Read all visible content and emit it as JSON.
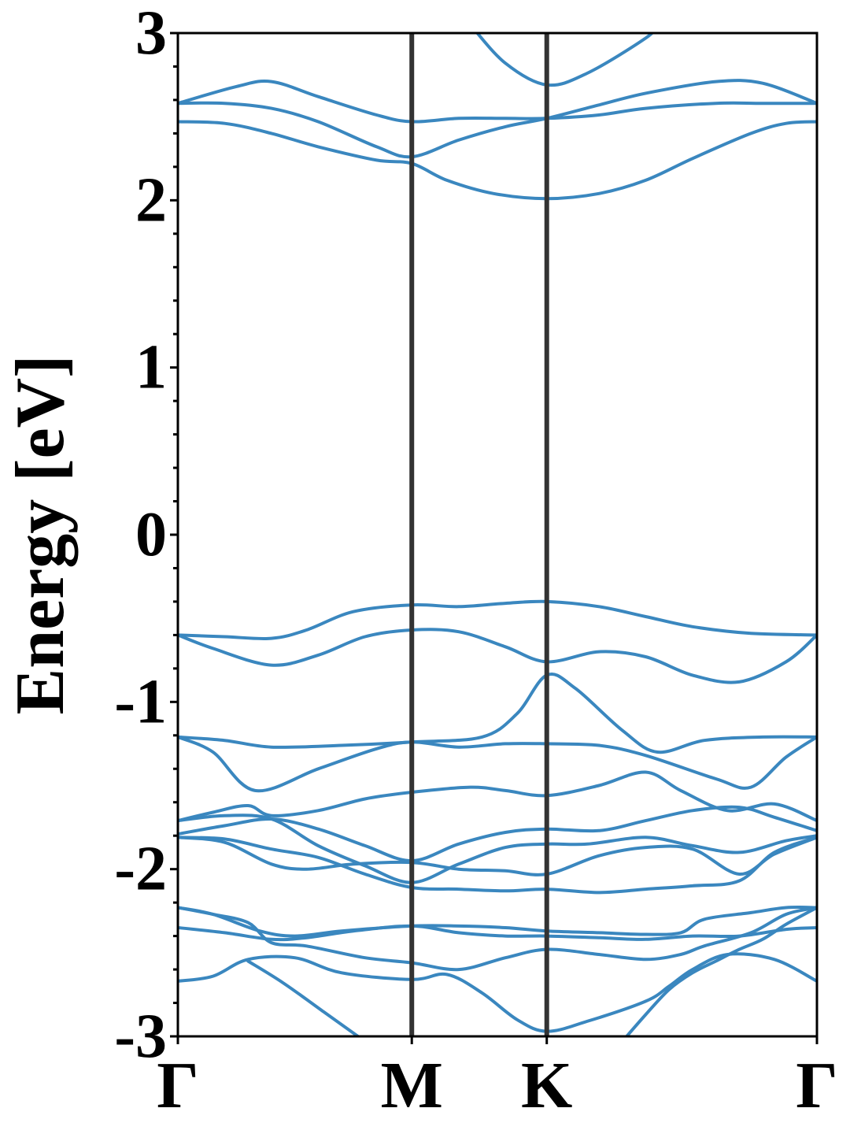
{
  "chart_data": {
    "type": "line",
    "title": "",
    "xlabel": "",
    "ylabel": "Energy [eV]",
    "ylim": [
      -3,
      3
    ],
    "xlim": [
      0,
      2.732
    ],
    "y_ticks": [
      -3,
      -2,
      -1,
      0,
      1,
      2,
      3
    ],
    "y_tick_labels": [
      "-3",
      "-2",
      "-1",
      "0",
      "1",
      "2",
      "3"
    ],
    "x_ticks": [
      0,
      1.0,
      1.577,
      2.732
    ],
    "x_tick_labels": [
      "Γ",
      "M",
      "K",
      "Γ"
    ],
    "high_symmetry_lines": [
      1.0,
      1.577
    ],
    "grid": false,
    "series_color": "#3a87bf",
    "divider_color": "#333333",
    "series": [
      {
        "values": [
          [
            0,
            2.58
          ],
          [
            0.25,
            2.68
          ],
          [
            0.4,
            2.71
          ],
          [
            0.6,
            2.62
          ],
          [
            0.85,
            2.51
          ],
          [
            1.0,
            2.47
          ],
          [
            1.2,
            2.49
          ],
          [
            1.4,
            2.49
          ],
          [
            1.577,
            2.49
          ],
          [
            1.8,
            2.51
          ],
          [
            2.0,
            2.55
          ],
          [
            2.3,
            2.58
          ],
          [
            2.5,
            2.58
          ],
          [
            2.732,
            2.58
          ]
        ]
      },
      {
        "values": [
          [
            0,
            2.58
          ],
          [
            0.2,
            2.58
          ],
          [
            0.4,
            2.55
          ],
          [
            0.6,
            2.47
          ],
          [
            0.85,
            2.32
          ],
          [
            1.0,
            2.26
          ],
          [
            1.2,
            2.36
          ],
          [
            1.4,
            2.44
          ],
          [
            1.577,
            2.49
          ],
          [
            1.8,
            2.57
          ],
          [
            2.0,
            2.64
          ],
          [
            2.3,
            2.71
          ],
          [
            2.5,
            2.7
          ],
          [
            2.732,
            2.58
          ]
        ]
      },
      {
        "values": [
          [
            0,
            2.47
          ],
          [
            0.2,
            2.46
          ],
          [
            0.4,
            2.4
          ],
          [
            0.6,
            2.32
          ],
          [
            0.85,
            2.24
          ],
          [
            1.0,
            2.22
          ],
          [
            1.15,
            2.12
          ],
          [
            1.35,
            2.04
          ],
          [
            1.577,
            2.01
          ],
          [
            1.8,
            2.04
          ],
          [
            2.0,
            2.12
          ],
          [
            2.2,
            2.25
          ],
          [
            2.45,
            2.4
          ],
          [
            2.6,
            2.46
          ],
          [
            2.732,
            2.47
          ]
        ]
      },
      {
        "values": [
          [
            1.25,
            3.05
          ],
          [
            1.4,
            2.82
          ],
          [
            1.577,
            2.69
          ],
          [
            1.75,
            2.76
          ],
          [
            2.0,
            2.97
          ],
          [
            2.05,
            3.05
          ]
        ]
      },
      {
        "values": [
          [
            0,
            -0.6
          ],
          [
            0.2,
            -0.61
          ],
          [
            0.4,
            -0.62
          ],
          [
            0.55,
            -0.57
          ],
          [
            0.75,
            -0.46
          ],
          [
            1.0,
            -0.42
          ],
          [
            1.2,
            -0.43
          ],
          [
            1.4,
            -0.41
          ],
          [
            1.577,
            -0.4
          ],
          [
            1.8,
            -0.43
          ],
          [
            2.0,
            -0.49
          ],
          [
            2.2,
            -0.55
          ],
          [
            2.45,
            -0.59
          ],
          [
            2.732,
            -0.6
          ]
        ]
      },
      {
        "values": [
          [
            0,
            -0.6
          ],
          [
            0.15,
            -0.68
          ],
          [
            0.4,
            -0.78
          ],
          [
            0.6,
            -0.72
          ],
          [
            0.8,
            -0.61
          ],
          [
            1.0,
            -0.57
          ],
          [
            1.2,
            -0.58
          ],
          [
            1.4,
            -0.67
          ],
          [
            1.577,
            -0.76
          ],
          [
            1.8,
            -0.7
          ],
          [
            2.0,
            -0.73
          ],
          [
            2.2,
            -0.84
          ],
          [
            2.4,
            -0.88
          ],
          [
            2.6,
            -0.76
          ],
          [
            2.732,
            -0.6
          ]
        ]
      },
      {
        "values": [
          [
            0,
            -1.21
          ],
          [
            0.2,
            -1.23
          ],
          [
            0.4,
            -1.27
          ],
          [
            0.7,
            -1.26
          ],
          [
            1.0,
            -1.24
          ],
          [
            1.3,
            -1.21
          ],
          [
            1.45,
            -1.07
          ],
          [
            1.577,
            -0.84
          ],
          [
            1.7,
            -0.92
          ],
          [
            1.9,
            -1.17
          ],
          [
            2.05,
            -1.3
          ],
          [
            2.25,
            -1.23
          ],
          [
            2.5,
            -1.21
          ],
          [
            2.732,
            -1.21
          ]
        ]
      },
      {
        "values": [
          [
            0,
            -1.21
          ],
          [
            0.15,
            -1.3
          ],
          [
            0.33,
            -1.53
          ],
          [
            0.6,
            -1.4
          ],
          [
            0.85,
            -1.28
          ],
          [
            1.0,
            -1.24
          ],
          [
            1.2,
            -1.27
          ],
          [
            1.4,
            -1.25
          ],
          [
            1.577,
            -1.25
          ],
          [
            1.8,
            -1.26
          ],
          [
            2.0,
            -1.32
          ],
          [
            2.3,
            -1.46
          ],
          [
            2.45,
            -1.51
          ],
          [
            2.6,
            -1.33
          ],
          [
            2.732,
            -1.21
          ]
        ]
      },
      {
        "values": [
          [
            0,
            -1.71
          ],
          [
            0.15,
            -1.66
          ],
          [
            0.3,
            -1.62
          ],
          [
            0.4,
            -1.68
          ],
          [
            0.6,
            -1.65
          ],
          [
            0.8,
            -1.58
          ],
          [
            1.0,
            -1.54
          ],
          [
            1.25,
            -1.51
          ],
          [
            1.4,
            -1.53
          ],
          [
            1.577,
            -1.56
          ],
          [
            1.8,
            -1.5
          ],
          [
            2.0,
            -1.42
          ],
          [
            2.15,
            -1.53
          ],
          [
            2.35,
            -1.65
          ],
          [
            2.55,
            -1.61
          ],
          [
            2.732,
            -1.71
          ]
        ]
      },
      {
        "values": [
          [
            0,
            -1.79
          ],
          [
            0.2,
            -1.74
          ],
          [
            0.4,
            -1.7
          ],
          [
            0.6,
            -1.76
          ],
          [
            0.8,
            -1.86
          ],
          [
            1.0,
            -1.95
          ],
          [
            1.2,
            -1.85
          ],
          [
            1.4,
            -1.78
          ],
          [
            1.577,
            -1.76
          ],
          [
            1.8,
            -1.77
          ],
          [
            2.0,
            -1.71
          ],
          [
            2.2,
            -1.65
          ],
          [
            2.4,
            -1.63
          ],
          [
            2.55,
            -1.69
          ],
          [
            2.732,
            -1.77
          ]
        ]
      },
      {
        "values": [
          [
            0,
            -1.71
          ],
          [
            0.2,
            -1.68
          ],
          [
            0.4,
            -1.7
          ],
          [
            0.6,
            -1.86
          ],
          [
            0.8,
            -1.98
          ],
          [
            1.0,
            -2.08
          ],
          [
            1.2,
            -1.97
          ],
          [
            1.4,
            -1.87
          ],
          [
            1.577,
            -1.85
          ],
          [
            1.75,
            -1.85
          ],
          [
            2.0,
            -1.81
          ],
          [
            2.2,
            -1.86
          ],
          [
            2.4,
            -1.9
          ],
          [
            2.6,
            -1.83
          ],
          [
            2.732,
            -1.8
          ]
        ]
      },
      {
        "values": [
          [
            0,
            -1.81
          ],
          [
            0.2,
            -1.84
          ],
          [
            0.4,
            -1.97
          ],
          [
            0.55,
            -2.0
          ],
          [
            0.75,
            -1.97
          ],
          [
            1.0,
            -1.96
          ],
          [
            1.2,
            -2.0
          ],
          [
            1.4,
            -2.01
          ],
          [
            1.577,
            -2.03
          ],
          [
            1.8,
            -1.92
          ],
          [
            2.0,
            -1.87
          ],
          [
            2.2,
            -1.88
          ],
          [
            2.4,
            -2.03
          ],
          [
            2.55,
            -1.91
          ],
          [
            2.732,
            -1.81
          ]
        ]
      },
      {
        "values": [
          [
            0,
            -1.81
          ],
          [
            0.2,
            -1.82
          ],
          [
            0.4,
            -1.88
          ],
          [
            0.6,
            -1.93
          ],
          [
            0.8,
            -2.03
          ],
          [
            1.0,
            -2.11
          ],
          [
            1.2,
            -2.12
          ],
          [
            1.4,
            -2.13
          ],
          [
            1.577,
            -2.12
          ],
          [
            1.8,
            -2.14
          ],
          [
            2.0,
            -2.12
          ],
          [
            2.2,
            -2.1
          ],
          [
            2.4,
            -2.07
          ],
          [
            2.55,
            -1.9
          ],
          [
            2.732,
            -1.81
          ]
        ]
      },
      {
        "values": [
          [
            0,
            -2.23
          ],
          [
            0.15,
            -2.27
          ],
          [
            0.35,
            -2.37
          ],
          [
            0.5,
            -2.4
          ],
          [
            0.7,
            -2.37
          ],
          [
            1.0,
            -2.34
          ],
          [
            1.2,
            -2.34
          ],
          [
            1.4,
            -2.35
          ],
          [
            1.577,
            -2.37
          ],
          [
            1.8,
            -2.38
          ],
          [
            2.0,
            -2.39
          ],
          [
            2.15,
            -2.38
          ],
          [
            2.25,
            -2.3
          ],
          [
            2.45,
            -2.26
          ],
          [
            2.6,
            -2.23
          ],
          [
            2.732,
            -2.23
          ]
        ]
      },
      {
        "values": [
          [
            0,
            -2.35
          ],
          [
            0.2,
            -2.38
          ],
          [
            0.4,
            -2.42
          ],
          [
            0.55,
            -2.41
          ],
          [
            0.75,
            -2.37
          ],
          [
            1.0,
            -2.34
          ],
          [
            1.2,
            -2.38
          ],
          [
            1.4,
            -2.4
          ],
          [
            1.577,
            -2.4
          ],
          [
            1.8,
            -2.41
          ],
          [
            2.0,
            -2.42
          ],
          [
            2.2,
            -2.4
          ],
          [
            2.4,
            -2.4
          ],
          [
            2.6,
            -2.36
          ],
          [
            2.732,
            -2.35
          ]
        ]
      },
      {
        "values": [
          [
            0,
            -2.23
          ],
          [
            0.15,
            -2.27
          ],
          [
            0.3,
            -2.32
          ],
          [
            0.4,
            -2.44
          ],
          [
            0.55,
            -2.46
          ],
          [
            0.8,
            -2.53
          ],
          [
            1.0,
            -2.56
          ],
          [
            1.2,
            -2.6
          ],
          [
            1.4,
            -2.53
          ],
          [
            1.577,
            -2.48
          ],
          [
            1.8,
            -2.51
          ],
          [
            2.0,
            -2.54
          ],
          [
            2.15,
            -2.51
          ],
          [
            2.25,
            -2.46
          ],
          [
            2.45,
            -2.38
          ],
          [
            2.6,
            -2.27
          ],
          [
            2.732,
            -2.23
          ]
        ]
      },
      {
        "values": [
          [
            0,
            -2.67
          ],
          [
            0.15,
            -2.64
          ],
          [
            0.3,
            -2.54
          ],
          [
            0.5,
            -2.53
          ],
          [
            0.7,
            -2.62
          ],
          [
            1.0,
            -2.66
          ],
          [
            1.15,
            -2.63
          ],
          [
            1.3,
            -2.74
          ],
          [
            1.45,
            -2.9
          ],
          [
            1.577,
            -2.97
          ],
          [
            1.75,
            -2.91
          ],
          [
            2.0,
            -2.79
          ],
          [
            2.1,
            -2.7
          ],
          [
            2.2,
            -2.6
          ],
          [
            2.35,
            -2.51
          ],
          [
            2.55,
            -2.54
          ],
          [
            2.732,
            -2.67
          ]
        ]
      },
      {
        "values": [
          [
            0.3,
            -2.55
          ],
          [
            0.45,
            -2.68
          ],
          [
            0.62,
            -2.85
          ],
          [
            0.75,
            -2.98
          ],
          [
            0.8,
            -3.03
          ]
        ]
      },
      {
        "values": [
          [
            1.9,
            -3.03
          ],
          [
            2.0,
            -2.87
          ],
          [
            2.1,
            -2.72
          ],
          [
            2.2,
            -2.62
          ],
          [
            2.3,
            -2.55
          ],
          [
            2.4,
            -2.48
          ],
          [
            2.5,
            -2.42
          ],
          [
            2.6,
            -2.33
          ],
          [
            2.732,
            -2.23
          ]
        ]
      }
    ]
  }
}
